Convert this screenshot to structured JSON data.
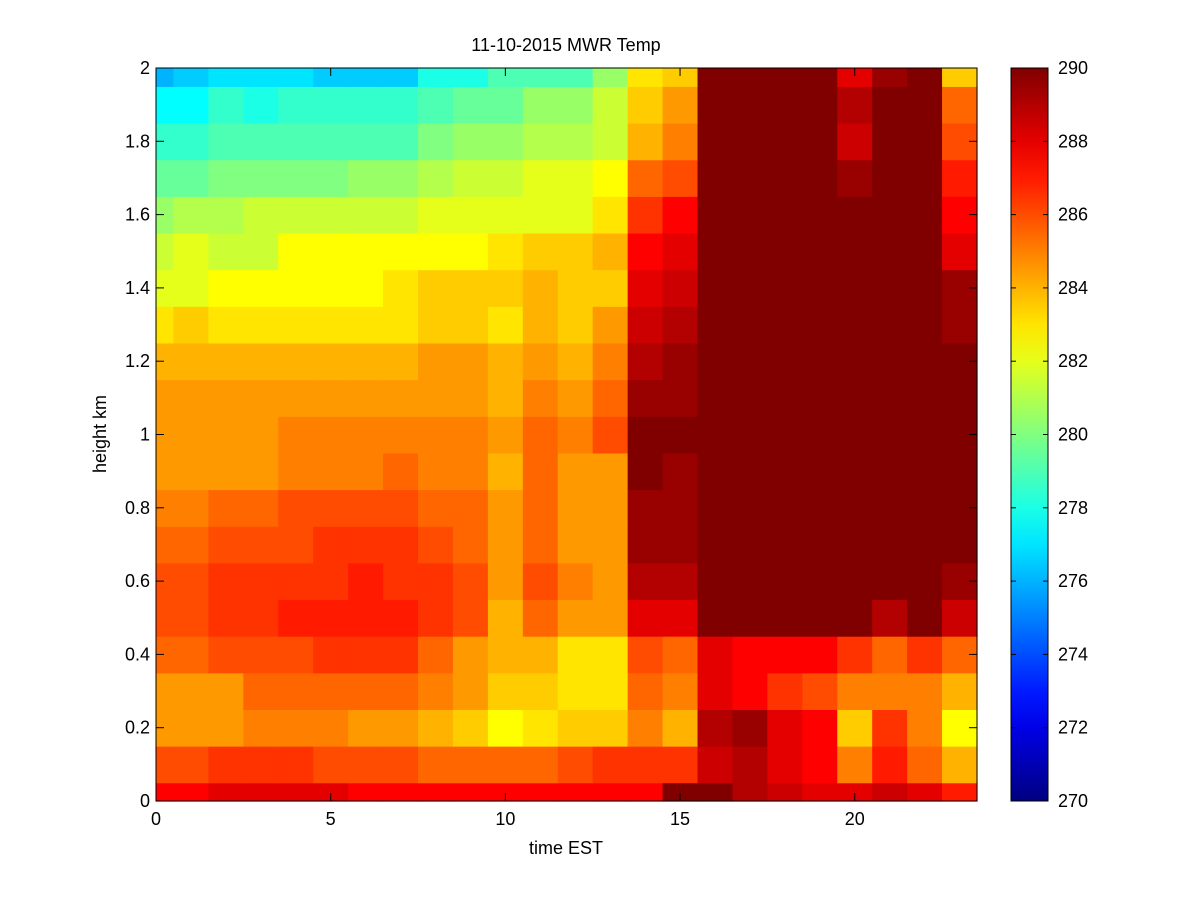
{
  "chart_data": {
    "type": "heatmap",
    "title": "11-10-2015 MWR Temp",
    "xlabel": "time EST",
    "ylabel": "height km",
    "xlim": [
      0,
      23.5
    ],
    "ylim": [
      0,
      2
    ],
    "xticks": [
      0,
      5,
      10,
      15,
      20
    ],
    "yticks": [
      0,
      0.2,
      0.4,
      0.6,
      0.8,
      1,
      1.2,
      1.4,
      1.6,
      1.8,
      2
    ],
    "x_edges": [
      0,
      0.5,
      1.5,
      2.5,
      3.5,
      4.5,
      5.5,
      6.5,
      7.5,
      8.5,
      9.5,
      10.5,
      11.5,
      12.5,
      13.5,
      14.5,
      15.5,
      16.5,
      17.5,
      18.5,
      19.5,
      20.5,
      21.5,
      22.5,
      23.5
    ],
    "y_edges": [
      0,
      0.05,
      0.15,
      0.25,
      0.35,
      0.45,
      0.55,
      0.65,
      0.75,
      0.85,
      0.95,
      1.05,
      1.15,
      1.25,
      1.35,
      1.45,
      1.55,
      1.65,
      1.75,
      1.85,
      1.95,
      2
    ],
    "colorbar": {
      "range": [
        270,
        290
      ],
      "ticks": [
        270,
        272,
        274,
        276,
        278,
        280,
        282,
        284,
        286,
        288,
        290
      ]
    },
    "values": [
      [
        287.5,
        287.5,
        288,
        288,
        288,
        288,
        287.5,
        287.5,
        287.5,
        287.5,
        287.5,
        287.5,
        287.5,
        287.5,
        287.5,
        290,
        290,
        289,
        288.5,
        288,
        288,
        288.5,
        288,
        287
      ],
      [
        286,
        286,
        286.5,
        286.5,
        286.5,
        286,
        286,
        286,
        285.5,
        285.5,
        285.5,
        285.5,
        286,
        286.5,
        286.5,
        286.5,
        288.5,
        289,
        288,
        287.5,
        285,
        287,
        285.5,
        284
      ],
      [
        284.5,
        284.5,
        284.5,
        285,
        285,
        285,
        284.5,
        284.5,
        284,
        283.5,
        282.5,
        283,
        283.5,
        283.5,
        285,
        284,
        289,
        289.5,
        288,
        287.5,
        283.5,
        286.5,
        285,
        282.5
      ],
      [
        284.5,
        284.5,
        284.5,
        285.5,
        285.5,
        285.5,
        285.5,
        285.5,
        285,
        284.5,
        283.5,
        283.5,
        283,
        283,
        285.5,
        285,
        288,
        287.5,
        286.5,
        286,
        285,
        285,
        285,
        284
      ],
      [
        285.5,
        285.5,
        286,
        286,
        286,
        286.5,
        286.5,
        286.5,
        285.5,
        284.5,
        284,
        284,
        283,
        283,
        286,
        285.5,
        288,
        287.5,
        287.5,
        287.5,
        286.5,
        285.5,
        286.5,
        285.5
      ],
      [
        286,
        286,
        286.5,
        286.5,
        287,
        287,
        287,
        287,
        286.5,
        286,
        284,
        285.5,
        284.5,
        284.5,
        288,
        288,
        290,
        290,
        290,
        290,
        290,
        289,
        290,
        288.5
      ],
      [
        286,
        286,
        286.5,
        286.5,
        286.5,
        286.5,
        287,
        286.5,
        286.5,
        286,
        284.5,
        286,
        285,
        284.5,
        289,
        289,
        290,
        290,
        290,
        290,
        290,
        290,
        290,
        289.5
      ],
      [
        285.5,
        285.5,
        286,
        286,
        286,
        286.5,
        286.5,
        286.5,
        286,
        285.5,
        284.5,
        285.5,
        284.5,
        284.5,
        289.5,
        289.5,
        290,
        290,
        290,
        290,
        290,
        290,
        290,
        290
      ],
      [
        285,
        285,
        285.5,
        285.5,
        286,
        286,
        286,
        286,
        285.5,
        285.5,
        284.5,
        285.5,
        284.5,
        284.5,
        289.5,
        289.5,
        290,
        290,
        290,
        290,
        290,
        290,
        290,
        290
      ],
      [
        284.5,
        284.5,
        284.5,
        284.5,
        285,
        285,
        285,
        285.5,
        285,
        285,
        284,
        285.5,
        284.5,
        284.5,
        290,
        289.5,
        290,
        290,
        290,
        290,
        290,
        290,
        290,
        290
      ],
      [
        284.5,
        284.5,
        284.5,
        284.5,
        285,
        285,
        285,
        285,
        285,
        285,
        284.5,
        285.5,
        285,
        286,
        290,
        290,
        290,
        290,
        290,
        290,
        290,
        290,
        290,
        290
      ],
      [
        284.5,
        284.5,
        284.5,
        284.5,
        284.5,
        284.5,
        284.5,
        284.5,
        284.5,
        284.5,
        284,
        285,
        284.5,
        285.5,
        289.5,
        289.5,
        290,
        290,
        290,
        290,
        290,
        290,
        290,
        290
      ],
      [
        284,
        284,
        284,
        284,
        284,
        284,
        284,
        284,
        284.5,
        284.5,
        284,
        284.5,
        284,
        285,
        289,
        289.5,
        290,
        290,
        290,
        290,
        290,
        290,
        290,
        290
      ],
      [
        283,
        283.5,
        283,
        283,
        283,
        283,
        283,
        283,
        283.5,
        283.5,
        283,
        284,
        283.5,
        284.5,
        288.5,
        289,
        290,
        290,
        290,
        290,
        290,
        290,
        290,
        289.5
      ],
      [
        282,
        282,
        282.5,
        282.5,
        282.5,
        282.5,
        282.5,
        283,
        283.5,
        283.5,
        283.5,
        284,
        283.5,
        283.5,
        288,
        288.5,
        290,
        290,
        290,
        290,
        290,
        290,
        290,
        289.5
      ],
      [
        281.5,
        282,
        281.5,
        281.5,
        282.5,
        282.5,
        282.5,
        282.5,
        282.5,
        282.5,
        283,
        283.5,
        283.5,
        284,
        287.5,
        288,
        290,
        290,
        290,
        290,
        290,
        290,
        290,
        288
      ],
      [
        280.5,
        281,
        281,
        281.5,
        281.5,
        281.5,
        281.5,
        281.5,
        282,
        282,
        282,
        282,
        282,
        283,
        286.5,
        287.5,
        290,
        290,
        290,
        290,
        290,
        290,
        290,
        287.5
      ],
      [
        279.5,
        279.5,
        280,
        280,
        280,
        280,
        280.5,
        280.5,
        281,
        281.5,
        281.5,
        282,
        282,
        282.5,
        285.5,
        286,
        290,
        290,
        290,
        290,
        289.5,
        290,
        290,
        287
      ],
      [
        278.5,
        278.5,
        279,
        279,
        279,
        279,
        279,
        279,
        280,
        280.5,
        280.5,
        281,
        281,
        281.5,
        284,
        285,
        290,
        290,
        290,
        290,
        288.5,
        290,
        290,
        286
      ],
      [
        277.5,
        277.5,
        278.5,
        278,
        278.5,
        278.5,
        278.5,
        278.5,
        279,
        279.5,
        279.5,
        280.5,
        280.5,
        281.5,
        283.5,
        284.5,
        290,
        290,
        290,
        290,
        289,
        290,
        290,
        285.5
      ],
      [
        276,
        276.5,
        277,
        277,
        277,
        276.5,
        276.5,
        276.5,
        278,
        278,
        279,
        279,
        279,
        280.5,
        283,
        283.5,
        290,
        290,
        290,
        290,
        288,
        289.5,
        290,
        283.5
      ]
    ]
  }
}
